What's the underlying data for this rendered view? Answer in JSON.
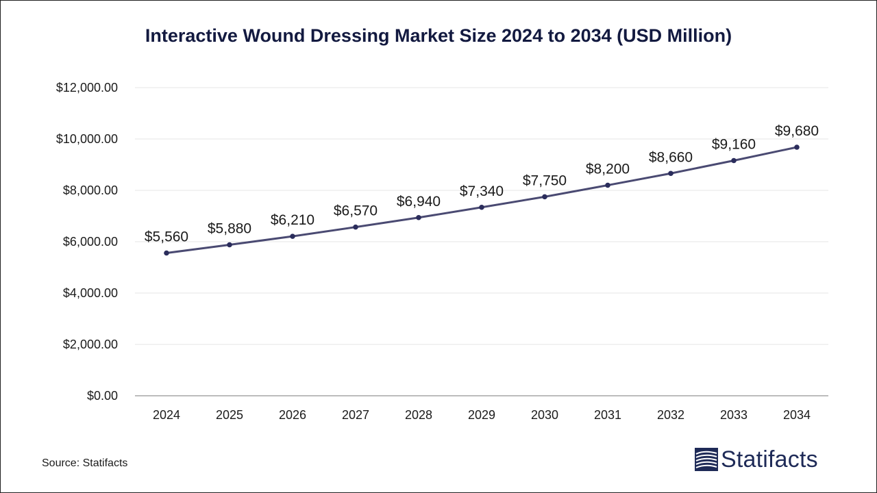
{
  "chart_data": {
    "type": "line",
    "title": "Interactive Wound Dressing Market Size 2024 to 2034 (USD Million)",
    "xlabel": "",
    "ylabel": "",
    "categories": [
      "2024",
      "2025",
      "2026",
      "2027",
      "2028",
      "2029",
      "2030",
      "2031",
      "2032",
      "2033",
      "2034"
    ],
    "values": [
      5560,
      5880,
      6210,
      6570,
      6940,
      7340,
      7750,
      8200,
      8660,
      9160,
      9680
    ],
    "data_labels": [
      "$5,560",
      "$5,880",
      "$6,210",
      "$6,570",
      "$6,940",
      "$7,340",
      "$7,750",
      "$8,200",
      "$8,660",
      "$9,160",
      "$9,680"
    ],
    "ylim": [
      0,
      12000
    ],
    "yticks": [
      0,
      2000,
      4000,
      6000,
      8000,
      10000,
      12000
    ],
    "ytick_labels": [
      "$0.00",
      "$2,000.00",
      "$4,000.00",
      "$6,000.00",
      "$8,000.00",
      "$10,000.00",
      "$12,000.00"
    ],
    "grid": true,
    "legend": "none",
    "line_color": "#4a4a72",
    "marker_color": "#2b2d5c"
  },
  "footer": {
    "source": "Source: Statifacts",
    "brand": "Statifacts",
    "brand_color": "#1e2a57"
  }
}
